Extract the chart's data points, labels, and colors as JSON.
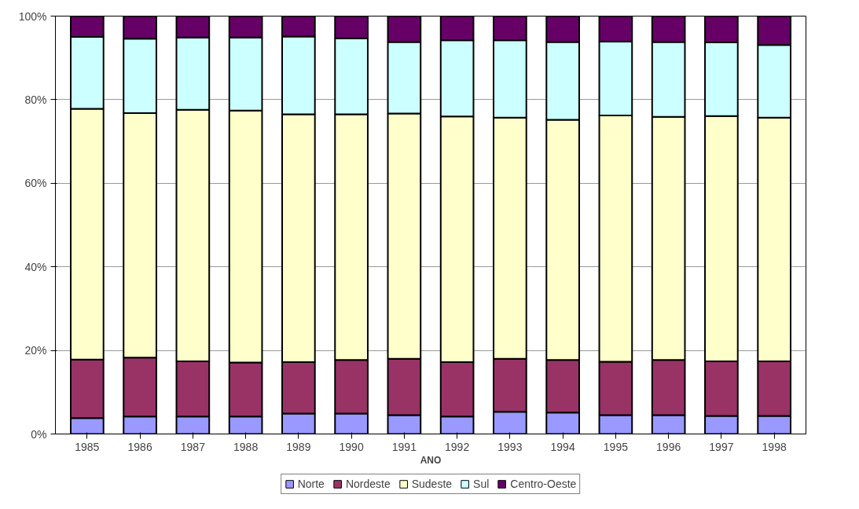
{
  "chart_data": {
    "type": "bar",
    "stacked": true,
    "xlabel": "ANO",
    "categories": [
      "1985",
      "1986",
      "1987",
      "1988",
      "1989",
      "1990",
      "1991",
      "1992",
      "1993",
      "1994",
      "1995",
      "1996",
      "1997",
      "1998"
    ],
    "series": [
      {
        "name": "Norte",
        "color": "#9999ff",
        "values": [
          3.8,
          4.2,
          4.2,
          4.2,
          4.9,
          4.9,
          4.5,
          4.2,
          5.3,
          5.1,
          4.5,
          4.5,
          4.3,
          4.3
        ]
      },
      {
        "name": "Nordeste",
        "color": "#993366",
        "values": [
          14.0,
          14.1,
          13.2,
          12.9,
          12.3,
          12.8,
          13.5,
          13.0,
          12.7,
          12.6,
          12.8,
          13.2,
          13.1,
          13.1
        ]
      },
      {
        "name": "Sudeste",
        "color": "#ffffcc",
        "values": [
          60.0,
          58.5,
          60.2,
          60.3,
          59.3,
          58.8,
          58.7,
          58.8,
          57.7,
          57.5,
          58.9,
          58.2,
          58.7,
          58.3
        ]
      },
      {
        "name": "Sul",
        "color": "#ccffff",
        "values": [
          17.2,
          17.8,
          17.3,
          17.5,
          18.6,
          18.2,
          17.1,
          18.2,
          18.5,
          18.6,
          17.7,
          17.9,
          17.6,
          17.4
        ]
      },
      {
        "name": "Centro-Oeste",
        "color": "#660066",
        "values": [
          5.0,
          5.4,
          5.1,
          5.1,
          4.9,
          5.3,
          6.2,
          5.8,
          5.8,
          6.2,
          6.1,
          6.2,
          6.3,
          6.9
        ]
      }
    ],
    "ylim": [
      0,
      100
    ],
    "yticks": [
      {
        "value": 0,
        "label": "0%"
      },
      {
        "value": 20,
        "label": "20%"
      },
      {
        "value": 40,
        "label": "40%"
      },
      {
        "value": 60,
        "label": "60%"
      },
      {
        "value": 80,
        "label": "80%"
      },
      {
        "value": 100,
        "label": "100%"
      }
    ],
    "grid": "y",
    "legend": "bottom"
  }
}
